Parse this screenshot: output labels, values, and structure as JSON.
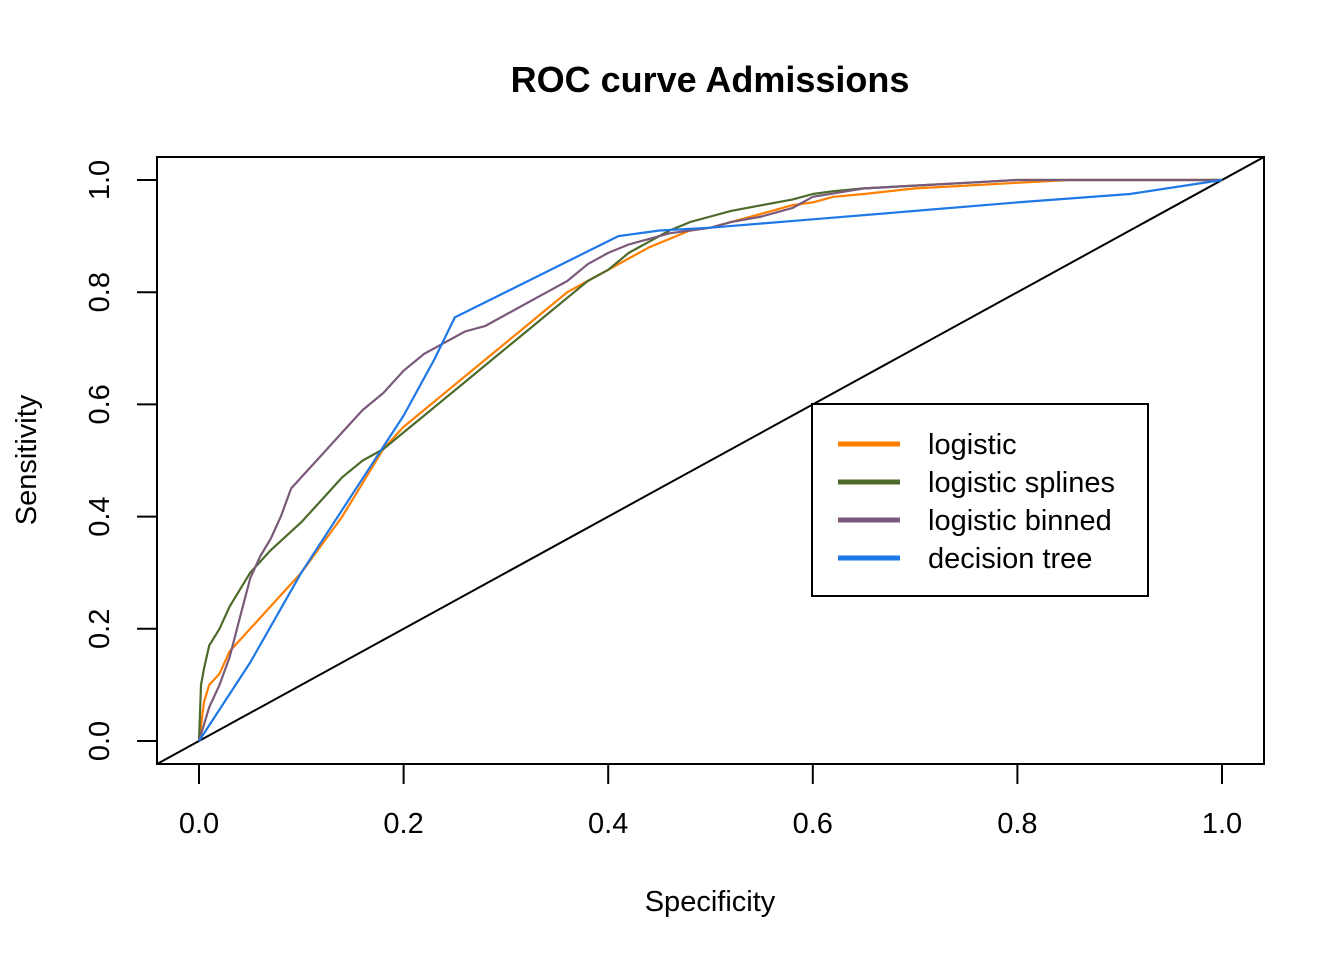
{
  "chart_data": {
    "type": "line",
    "title": "ROC curve Admissions",
    "xlabel": "Specificity",
    "ylabel": "Sensitivity",
    "xlim": [
      0,
      1
    ],
    "ylim": [
      0,
      1
    ],
    "x_ticks": [
      "0.0",
      "0.2",
      "0.4",
      "0.6",
      "0.8",
      "1.0"
    ],
    "y_ticks": [
      "0.0",
      "0.2",
      "0.4",
      "0.6",
      "0.8",
      "1.0"
    ],
    "legend_position": "center-right",
    "grid": false,
    "diagonal_reference": true,
    "series": [
      {
        "name": "logistic",
        "color": "#FF7F00",
        "x": [
          0,
          0.005,
          0.01,
          0.02,
          0.03,
          0.05,
          0.07,
          0.09,
          0.1,
          0.12,
          0.14,
          0.16,
          0.18,
          0.2,
          0.22,
          0.24,
          0.26,
          0.28,
          0.3,
          0.32,
          0.34,
          0.36,
          0.38,
          0.4,
          0.42,
          0.44,
          0.46,
          0.48,
          0.5,
          0.52,
          0.55,
          0.58,
          0.6,
          0.62,
          0.65,
          0.7,
          0.75,
          0.8,
          0.85,
          0.9,
          0.95,
          1.0
        ],
        "y": [
          0,
          0.07,
          0.1,
          0.12,
          0.16,
          0.2,
          0.24,
          0.28,
          0.3,
          0.35,
          0.4,
          0.46,
          0.52,
          0.56,
          0.59,
          0.62,
          0.65,
          0.68,
          0.71,
          0.74,
          0.77,
          0.8,
          0.82,
          0.84,
          0.86,
          0.88,
          0.895,
          0.91,
          0.915,
          0.925,
          0.94,
          0.955,
          0.96,
          0.97,
          0.975,
          0.985,
          0.99,
          0.995,
          1.0,
          1.0,
          1.0,
          1.0
        ]
      },
      {
        "name": "logistic splines",
        "color": "#4C6A2A",
        "x": [
          0,
          0.002,
          0.005,
          0.01,
          0.02,
          0.03,
          0.05,
          0.07,
          0.1,
          0.12,
          0.14,
          0.16,
          0.18,
          0.2,
          0.22,
          0.24,
          0.26,
          0.28,
          0.3,
          0.32,
          0.34,
          0.36,
          0.38,
          0.4,
          0.42,
          0.44,
          0.46,
          0.48,
          0.5,
          0.52,
          0.55,
          0.58,
          0.6,
          0.62,
          0.65,
          0.7,
          0.75,
          0.8,
          0.85,
          0.9,
          0.95,
          1.0
        ],
        "y": [
          0,
          0.1,
          0.13,
          0.17,
          0.2,
          0.24,
          0.3,
          0.34,
          0.39,
          0.43,
          0.47,
          0.5,
          0.52,
          0.55,
          0.58,
          0.61,
          0.64,
          0.67,
          0.7,
          0.73,
          0.76,
          0.79,
          0.82,
          0.84,
          0.87,
          0.89,
          0.91,
          0.925,
          0.935,
          0.945,
          0.955,
          0.965,
          0.975,
          0.98,
          0.985,
          0.99,
          0.995,
          1.0,
          1.0,
          1.0,
          1.0,
          1.0
        ]
      },
      {
        "name": "logistic binned",
        "color": "#7A5A7A",
        "x": [
          0,
          0.01,
          0.02,
          0.03,
          0.04,
          0.05,
          0.06,
          0.07,
          0.08,
          0.09,
          0.1,
          0.12,
          0.14,
          0.16,
          0.18,
          0.2,
          0.22,
          0.24,
          0.26,
          0.28,
          0.3,
          0.32,
          0.34,
          0.36,
          0.38,
          0.4,
          0.42,
          0.44,
          0.46,
          0.48,
          0.5,
          0.52,
          0.55,
          0.58,
          0.6,
          0.65,
          0.7,
          0.75,
          0.8,
          0.85,
          0.9,
          0.95,
          1.0
        ],
        "y": [
          0,
          0.06,
          0.1,
          0.15,
          0.22,
          0.29,
          0.33,
          0.36,
          0.4,
          0.45,
          0.47,
          0.51,
          0.55,
          0.59,
          0.62,
          0.66,
          0.69,
          0.71,
          0.73,
          0.74,
          0.76,
          0.78,
          0.8,
          0.82,
          0.85,
          0.87,
          0.885,
          0.895,
          0.905,
          0.91,
          0.915,
          0.925,
          0.935,
          0.95,
          0.97,
          0.985,
          0.99,
          0.995,
          1.0,
          1.0,
          1.0,
          1.0,
          1.0
        ]
      },
      {
        "name": "decision tree",
        "color": "#1E78E6",
        "x": [
          0,
          0.05,
          0.1,
          0.15,
          0.2,
          0.23,
          0.25,
          0.41,
          0.45,
          0.5,
          0.6,
          0.7,
          0.8,
          0.91,
          1.0
        ],
        "y": [
          0,
          0.14,
          0.3,
          0.44,
          0.58,
          0.68,
          0.755,
          0.9,
          0.91,
          0.915,
          0.93,
          0.945,
          0.96,
          0.975,
          1.0
        ]
      }
    ]
  }
}
